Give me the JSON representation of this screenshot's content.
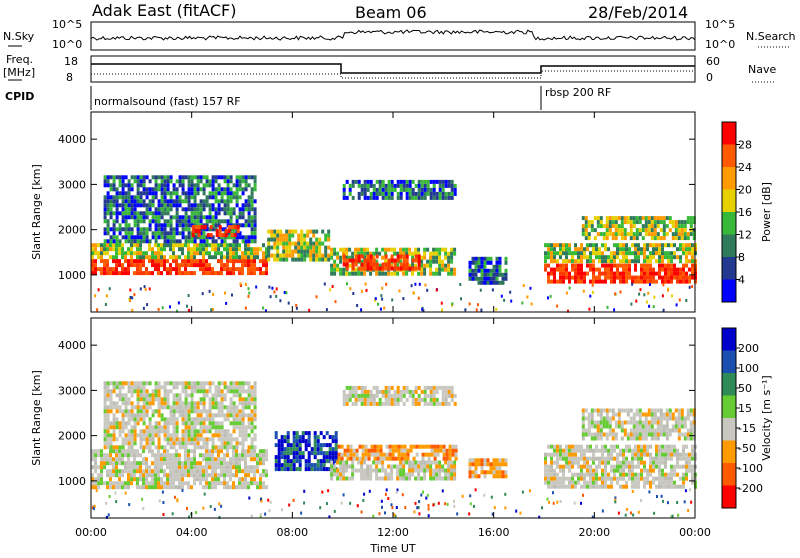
{
  "header": {
    "radar": "Adak East (fitACF)",
    "beam": "Beam 06",
    "date": "28/Feb/2014"
  },
  "status_panel": {
    "nsky_label": "N.Sky",
    "nsky_ticks": [
      "10^5",
      "10^0"
    ],
    "nsearch_label": "N.Search",
    "freq_label": "Freq.",
    "freq_unit": "[MHz]",
    "freq_ticks": [
      "18",
      "8"
    ],
    "nave_label": "Nave",
    "nave_ticks": [
      "60",
      "0"
    ],
    "cpid_label": "CPID",
    "cpid_1": "normalsound (fast) 157 RF",
    "cpid_2": "rbsp 200 RF"
  },
  "chart_data": [
    {
      "type": "heatmap",
      "name": "power",
      "ylabel": "Slant Range [km]",
      "xlabel": "",
      "ylim": [
        180,
        4600
      ],
      "yticks": [
        "1000",
        "2000",
        "3000",
        "4000"
      ],
      "xticks": [
        "00:00",
        "04:00",
        "08:00",
        "12:00",
        "16:00",
        "20:00",
        "00:00"
      ],
      "colorbar": {
        "label": "Power [dB]",
        "ticks": [
          "28",
          "24",
          "20",
          "16",
          "12",
          "8",
          "4"
        ],
        "colors": [
          "#ff0000",
          "#ff5a00",
          "#ff9a00",
          "#e6d000",
          "#38b838",
          "#2f7a5a",
          "#23398f",
          "#0000ff"
        ]
      },
      "bands": [
        {
          "t0": 0.0,
          "t1": 7.0,
          "r0": 1050,
          "r1": 1350,
          "level": "high"
        },
        {
          "t0": 0.0,
          "t1": 7.0,
          "r0": 1350,
          "r1": 1700,
          "level": "mid"
        },
        {
          "t0": 0.5,
          "t1": 6.5,
          "r0": 1700,
          "r1": 3200,
          "level": "low"
        },
        {
          "t0": 4.0,
          "t1": 5.8,
          "r0": 1850,
          "r1": 2100,
          "level": "high"
        },
        {
          "t0": 7.0,
          "t1": 9.5,
          "r0": 1300,
          "r1": 2000,
          "level": "mid"
        },
        {
          "t0": 9.5,
          "t1": 14.5,
          "r0": 1050,
          "r1": 1600,
          "level": "mid"
        },
        {
          "t0": 10.0,
          "t1": 13.0,
          "r0": 1150,
          "r1": 1450,
          "level": "high"
        },
        {
          "t0": 15.0,
          "t1": 16.5,
          "r0": 800,
          "r1": 1400,
          "level": "low"
        },
        {
          "t0": 18.0,
          "t1": 24.0,
          "r0": 850,
          "r1": 1250,
          "level": "high"
        },
        {
          "t0": 18.0,
          "t1": 24.0,
          "r0": 1300,
          "r1": 1700,
          "level": "mid"
        },
        {
          "t0": 19.5,
          "t1": 24.0,
          "r0": 1800,
          "r1": 2300,
          "level": "mid"
        },
        {
          "t0": 10.0,
          "t1": 14.5,
          "r0": 2700,
          "r1": 3100,
          "level": "low"
        }
      ]
    },
    {
      "type": "heatmap",
      "name": "velocity",
      "ylabel": "Slant Range [km]",
      "xlabel": "Time UT",
      "ylim": [
        180,
        4600
      ],
      "yticks": [
        "1000",
        "2000",
        "3000",
        "4000"
      ],
      "xticks": [
        "00:00",
        "04:00",
        "08:00",
        "12:00",
        "16:00",
        "20:00",
        "00:00"
      ],
      "colorbar": {
        "label": "Velocity [m s⁻¹]",
        "ticks": [
          "200",
          "100",
          "50",
          "15",
          "-15",
          "-50",
          "-100",
          "-200"
        ],
        "colors": [
          "#0000cc",
          "#1a4fb0",
          "#2e8b57",
          "#66cc33",
          "#c8c8c0",
          "#ff9a00",
          "#ff5a00",
          "#ff0000"
        ]
      },
      "bands": [
        {
          "t0": 0.0,
          "t1": 7.0,
          "r0": 900,
          "r1": 1700,
          "level": "zero"
        },
        {
          "t0": 0.5,
          "t1": 6.5,
          "r0": 1700,
          "r1": 3200,
          "level": "zero"
        },
        {
          "t0": 7.3,
          "t1": 9.8,
          "r0": 1300,
          "r1": 2100,
          "level": "pos_high"
        },
        {
          "t0": 9.8,
          "t1": 14.5,
          "r0": 1450,
          "r1": 1800,
          "level": "neg"
        },
        {
          "t0": 9.5,
          "t1": 14.5,
          "r0": 1050,
          "r1": 1450,
          "level": "zero"
        },
        {
          "t0": 15.0,
          "t1": 16.5,
          "r0": 1100,
          "r1": 1500,
          "level": "neg"
        },
        {
          "t0": 18.0,
          "t1": 24.0,
          "r0": 850,
          "r1": 1800,
          "level": "zero"
        },
        {
          "t0": 19.5,
          "t1": 24.0,
          "r0": 1900,
          "r1": 2600,
          "level": "zero"
        },
        {
          "t0": 10.0,
          "t1": 14.5,
          "r0": 2700,
          "r1": 3100,
          "level": "zero"
        }
      ]
    }
  ]
}
